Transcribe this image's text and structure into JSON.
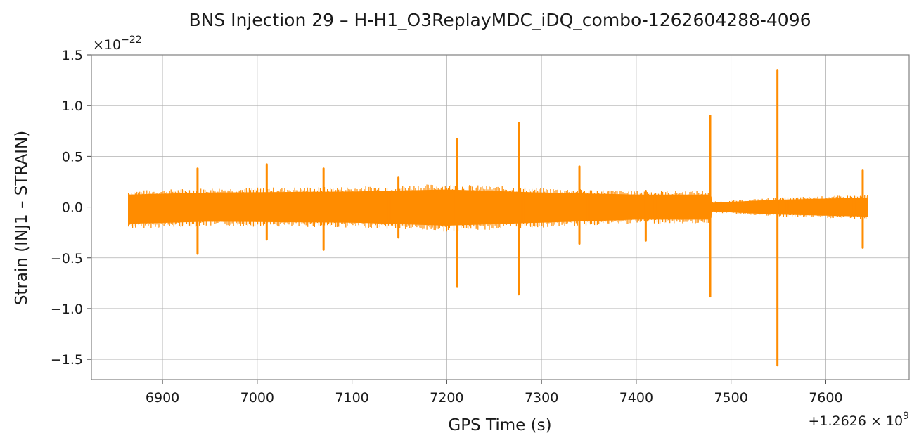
{
  "chart_data": {
    "type": "line",
    "title": "BNS Injection 29 – H-H1_O3ReplayMDC_iDQ_combo-1262604288-4096",
    "xlabel": "GPS Time (s)",
    "ylabel": "Strain (INJ1 – STRAIN)",
    "x_offset_label": "+1.2626 × 10",
    "x_offset_exp": "9",
    "y_scale_label": "×10",
    "y_scale_exp": "−22",
    "xlim": [
      6825,
      7688
    ],
    "ylim": [
      -1.7,
      1.5
    ],
    "x_ticks": [
      6900,
      7000,
      7100,
      7200,
      7300,
      7400,
      7500,
      7600
    ],
    "x_tick_labels": [
      "6900",
      "7000",
      "7100",
      "7200",
      "7300",
      "7400",
      "7500",
      "7600"
    ],
    "y_ticks": [
      -1.5,
      -1.0,
      -0.5,
      0.0,
      0.5,
      1.0,
      1.5
    ],
    "y_tick_labels": [
      "−1.5",
      "−1.0",
      "−0.5",
      "0.0",
      "0.5",
      "1.0",
      "1.5"
    ],
    "grid": true,
    "series": [
      {
        "color": "#ff8c00",
        "x_start": 6864,
        "x_end": 7644,
        "envelope": [
          {
            "x": 6864,
            "upper": 0.12,
            "lower": -0.16
          },
          {
            "x": 6950,
            "upper": 0.14,
            "lower": -0.14
          },
          {
            "x": 7100,
            "upper": 0.15,
            "lower": -0.15
          },
          {
            "x": 7200,
            "upper": 0.17,
            "lower": -0.18
          },
          {
            "x": 7300,
            "upper": 0.14,
            "lower": -0.15
          },
          {
            "x": 7400,
            "upper": 0.12,
            "lower": -0.12
          },
          {
            "x": 7478,
            "upper": 0.12,
            "lower": -0.12
          },
          {
            "x": 7480,
            "upper": 0.04,
            "lower": -0.04
          },
          {
            "x": 7550,
            "upper": 0.07,
            "lower": -0.07
          },
          {
            "x": 7644,
            "upper": 0.09,
            "lower": -0.09
          }
        ],
        "spikes": [
          {
            "x": 6937,
            "max": 0.38,
            "min": -0.46
          },
          {
            "x": 7010,
            "max": 0.42,
            "min": -0.32
          },
          {
            "x": 7070,
            "max": 0.38,
            "min": -0.42
          },
          {
            "x": 7149,
            "max": 0.29,
            "min": -0.3
          },
          {
            "x": 7211,
            "max": 0.67,
            "min": -0.78
          },
          {
            "x": 7276,
            "max": 0.83,
            "min": -0.86
          },
          {
            "x": 7340,
            "max": 0.4,
            "min": -0.36
          },
          {
            "x": 7410,
            "max": 0.16,
            "min": -0.33
          },
          {
            "x": 7478,
            "max": 0.9,
            "min": -0.88
          },
          {
            "x": 7549,
            "max": 1.35,
            "min": -1.56
          },
          {
            "x": 7639,
            "max": 0.36,
            "min": -0.4
          }
        ]
      }
    ]
  }
}
